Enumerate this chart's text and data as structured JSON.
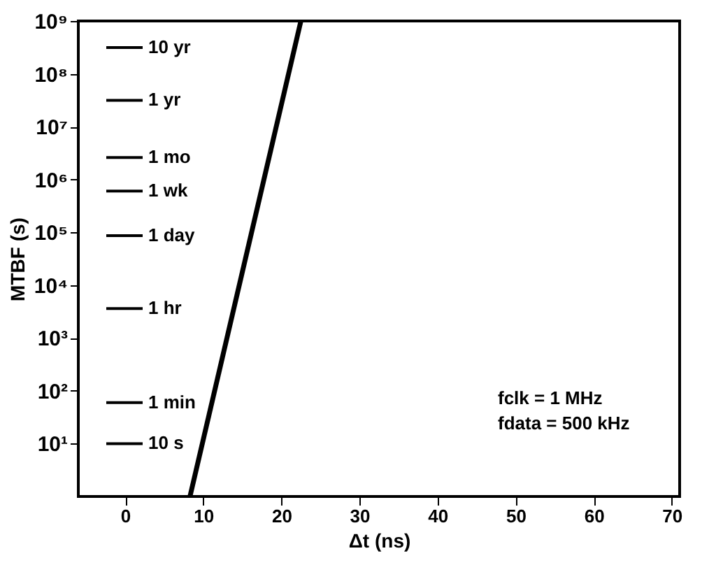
{
  "chart_data": {
    "type": "line",
    "xlabel": "Δt (ns)",
    "ylabel": "MTBF (s)",
    "series": [
      {
        "color": "#000000",
        "x": [
          8.3,
          22.5
        ],
        "values": [
          1,
          1000000000
        ]
      }
    ],
    "log": "y",
    "grid": false,
    "xlim": [
      -6,
      71
    ],
    "xticks": [
      0,
      10,
      20,
      30,
      40,
      50,
      60,
      70
    ],
    "ylim": [
      1,
      1000000000
    ],
    "yticks": [
      {
        "value": 10,
        "label": "10¹"
      },
      {
        "value": 100,
        "label": "10²"
      },
      {
        "value": 1000,
        "label": "10³"
      },
      {
        "value": 10000,
        "label": "10⁴"
      },
      {
        "value": 100000,
        "label": "10⁵"
      },
      {
        "value": 1000000,
        "label": "10⁶"
      },
      {
        "value": 10000000,
        "label": "10⁷"
      },
      {
        "value": 100000000,
        "label": "10⁸"
      },
      {
        "value": 1000000000,
        "label": "10⁹"
      }
    ],
    "ref_lines": [
      {
        "axis": "y",
        "value": 315000000,
        "label": "10 yr",
        "color": "#000000"
      },
      {
        "axis": "y",
        "value": 31500000,
        "label": "1 yr",
        "color": "#000000"
      },
      {
        "axis": "y",
        "value": 2600000,
        "label": "1 mo",
        "color": "#000000"
      },
      {
        "axis": "y",
        "value": 605000,
        "label": "1 wk",
        "color": "#000000"
      },
      {
        "axis": "y",
        "value": 86400,
        "label": "1 day",
        "color": "#000000"
      },
      {
        "axis": "y",
        "value": 3600,
        "label": "1 hr",
        "color": "#000000"
      },
      {
        "axis": "y",
        "value": 60,
        "label": "1 min",
        "color": "#000000"
      },
      {
        "axis": "y",
        "value": 10,
        "label": "10 s",
        "color": "#000000"
      }
    ],
    "annotations": [
      "fclk = 1 MHz",
      "fdata = 500 kHz"
    ]
  }
}
